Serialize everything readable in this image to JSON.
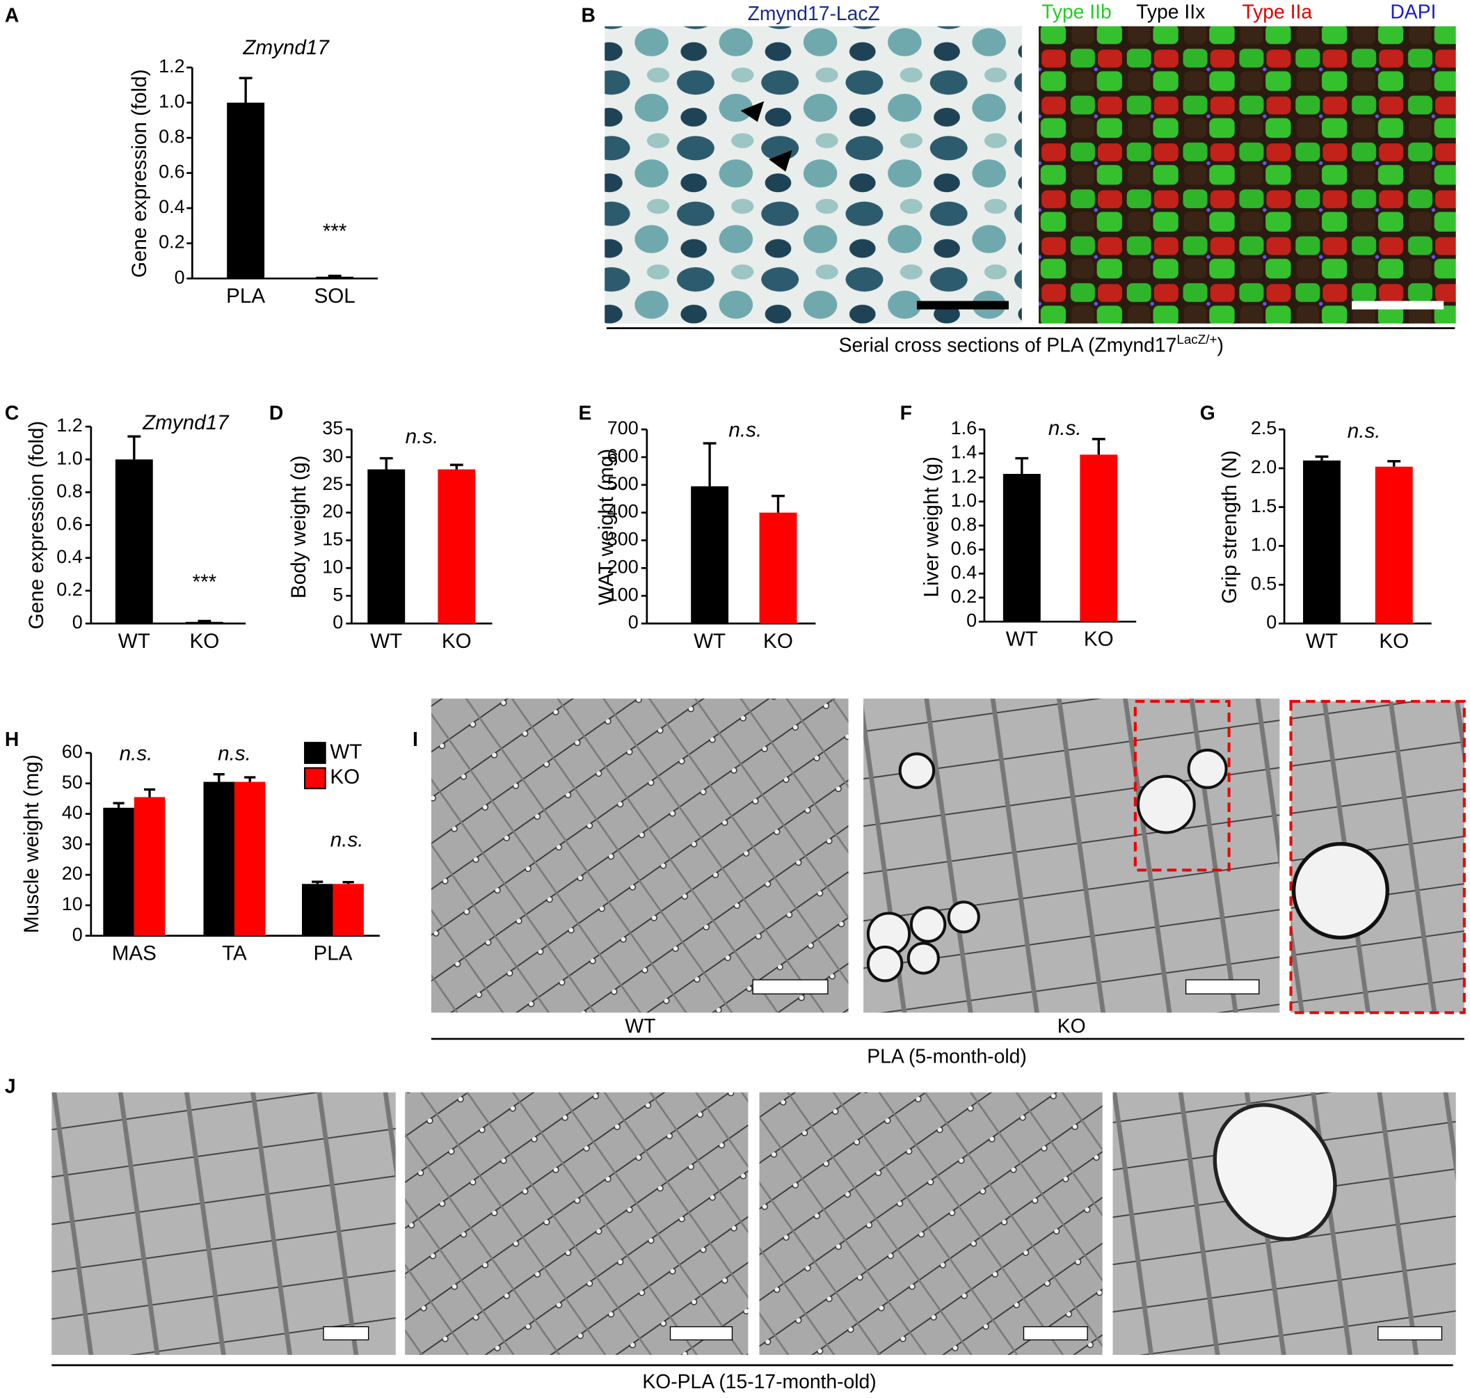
{
  "chart_data": [
    {
      "type": "bar",
      "title": "Zmynd17",
      "ylabel": "Gene expression (fold)",
      "categories": [
        "PLA",
        "SOL"
      ],
      "values": [
        1.0,
        0.01
      ],
      "errors": [
        0.14,
        0.005
      ],
      "color": "#000000",
      "ylim": [
        0,
        1.2
      ],
      "yticks": [
        0,
        0.2,
        0.4,
        0.6,
        0.8,
        {
          "value": 1,
          "label": "1.0"
        },
        1.2
      ],
      "annotations": [
        "***"
      ]
    },
    {
      "type": "bar",
      "title": "Zmynd17",
      "ylabel": "Gene expression (fold)",
      "categories": [
        "WT",
        "KO"
      ],
      "values": [
        1.0,
        0.01
      ],
      "errors": [
        0.14,
        0.005
      ],
      "color": "#000000",
      "ylim": [
        0,
        1.2
      ],
      "yticks": [
        0,
        0.2,
        0.4,
        0.6,
        0.8,
        {
          "value": 1,
          "label": "1.0"
        },
        1.2
      ],
      "annotations": [
        "***"
      ]
    },
    {
      "type": "bar",
      "ylabel": "Body weight (g)",
      "categories": [
        "WT",
        "KO"
      ],
      "values": [
        27.8,
        27.8
      ],
      "errors": [
        2.0,
        0.8
      ],
      "colors": [
        "#000000",
        "#ff0000"
      ],
      "ylim": [
        0,
        35
      ],
      "yticks": [
        0,
        5,
        10,
        15,
        20,
        25,
        30,
        35
      ],
      "annotations": [
        "n.s."
      ]
    },
    {
      "type": "bar",
      "ylabel": "WAT weight (mg)",
      "categories": [
        "WT",
        "KO"
      ],
      "values": [
        495,
        400
      ],
      "errors": [
        155,
        60
      ],
      "colors": [
        "#000000",
        "#ff0000"
      ],
      "ylim": [
        0,
        700
      ],
      "yticks": [
        0,
        100,
        200,
        300,
        400,
        500,
        600,
        700
      ],
      "annotations": [
        "n.s."
      ]
    },
    {
      "type": "bar",
      "ylabel": "Liver weight (g)",
      "categories": [
        "WT",
        "KO"
      ],
      "values": [
        1.23,
        1.39
      ],
      "errors": [
        0.13,
        0.13
      ],
      "colors": [
        "#000000",
        "#ff0000"
      ],
      "ylim": [
        0,
        1.6
      ],
      "yticks": [
        0,
        0.2,
        0.4,
        0.6,
        0.8,
        {
          "value": 1,
          "label": "1.0"
        },
        1.2,
        1.4,
        1.6
      ],
      "annotations": [
        "n.s."
      ]
    },
    {
      "type": "bar",
      "ylabel": "Grip strength (N)",
      "categories": [
        "WT",
        "KO"
      ],
      "values": [
        2.1,
        2.02
      ],
      "errors": [
        0.05,
        0.07
      ],
      "colors": [
        "#000000",
        "#ff0000"
      ],
      "ylim": [
        0,
        2.5
      ],
      "yticks": [
        0,
        0.5,
        {
          "value": 1,
          "label": "1.0"
        },
        1.5,
        {
          "value": 2,
          "label": "2.0"
        },
        2.5
      ],
      "annotations": [
        "n.s."
      ]
    },
    {
      "type": "grouped-bar",
      "ylabel": "Muscle weight (mg)",
      "categories": [
        "MAS",
        "TA",
        "PLA"
      ],
      "series": [
        {
          "name": "WT",
          "color": "#000000",
          "values": [
            42,
            50.5,
            17
          ],
          "errors": [
            1.5,
            2.5,
            0.7
          ]
        },
        {
          "name": "KO",
          "color": "#ff0000",
          "values": [
            45.5,
            50.5,
            17
          ],
          "errors": [
            2.5,
            1.5,
            0.6
          ]
        }
      ],
      "ylim": [
        0,
        60
      ],
      "yticks": [
        0,
        10,
        20,
        30,
        40,
        50,
        60
      ],
      "legend": "upper right",
      "annotations": [
        "n.s.",
        "n.s.",
        "n.s."
      ]
    }
  ],
  "figure": {
    "panels": [
      "A",
      "B",
      "C",
      "D",
      "E",
      "F",
      "G",
      "H",
      "I",
      "J"
    ],
    "b_title": "Zmynd17-LacZ",
    "b_stains": [
      "Type IIb",
      "Type IIx",
      "Type IIa",
      "DAPI"
    ],
    "b_caption": [
      "Serial cross sections of PLA (Zmynd17",
      "LacZ/+",
      ")"
    ],
    "i_labels": [
      "WT",
      "KO"
    ],
    "i_caption": "PLA (5-month-old)",
    "j_caption": "KO-PLA (15-17-month-old)"
  }
}
